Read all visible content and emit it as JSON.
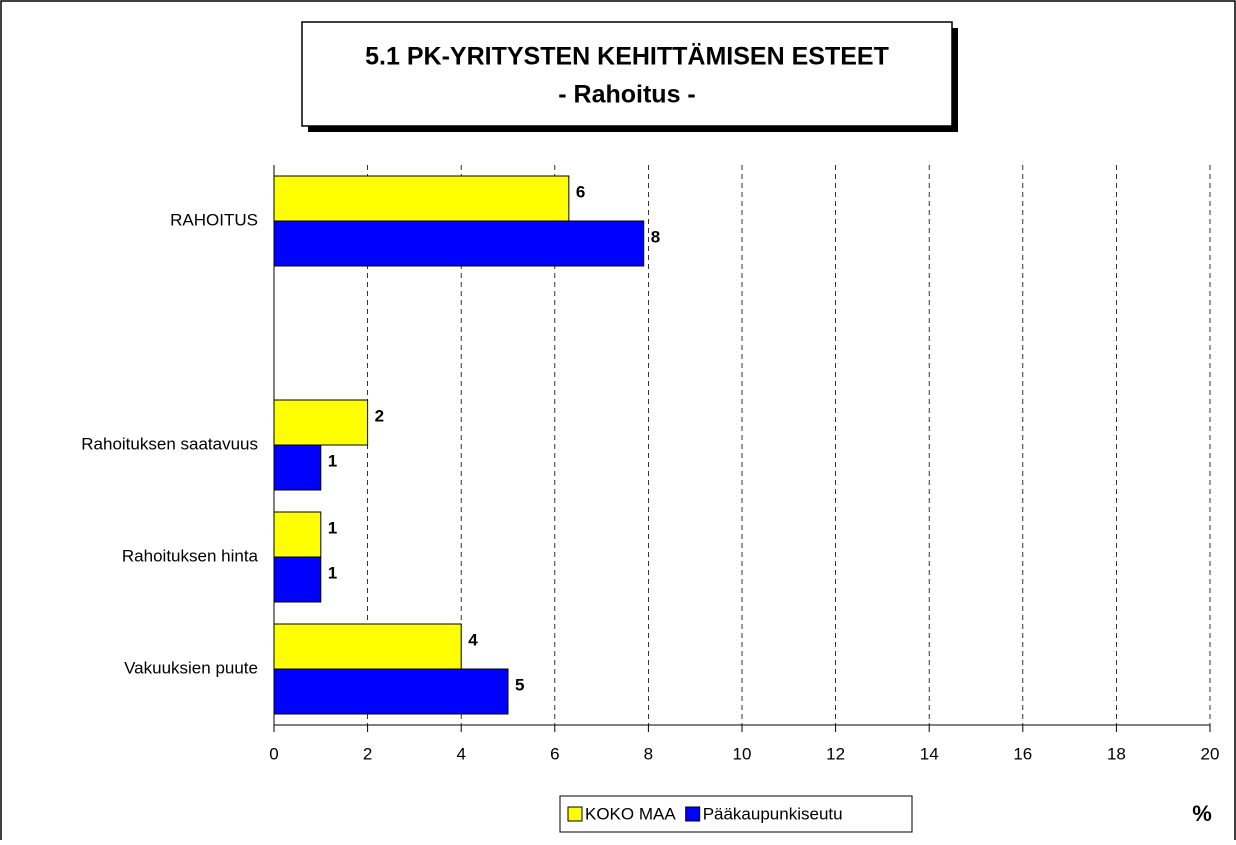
{
  "chart_data": {
    "type": "hbar",
    "title": "5.1 PK-YRITYSTEN KEHITTÄMISEN ESTEET",
    "subtitle": "- Rahoitus -",
    "x_label": "%",
    "categories": [
      "RAHOITUS",
      null,
      "Rahoituksen saatavuus",
      "Rahoituksen hinta",
      "Vakuuksien puute"
    ],
    "series": [
      {
        "name": "KOKO MAA",
        "color": "#ffff00",
        "values": [
          6.3,
          null,
          2,
          1,
          4
        ],
        "value_labels": [
          "6",
          null,
          "2",
          "1",
          "4"
        ]
      },
      {
        "name": "Pääkaupunkiseutu",
        "color": "#0000ff",
        "values": [
          7.9,
          null,
          1,
          1,
          5
        ],
        "value_labels": [
          "8",
          null,
          "1",
          "1",
          "5"
        ]
      }
    ],
    "xlim": [
      0,
      20
    ],
    "xticks": [
      0,
      2,
      4,
      6,
      8,
      10,
      12,
      14,
      16,
      18,
      20
    ],
    "grid": true,
    "legend": "bottom"
  }
}
